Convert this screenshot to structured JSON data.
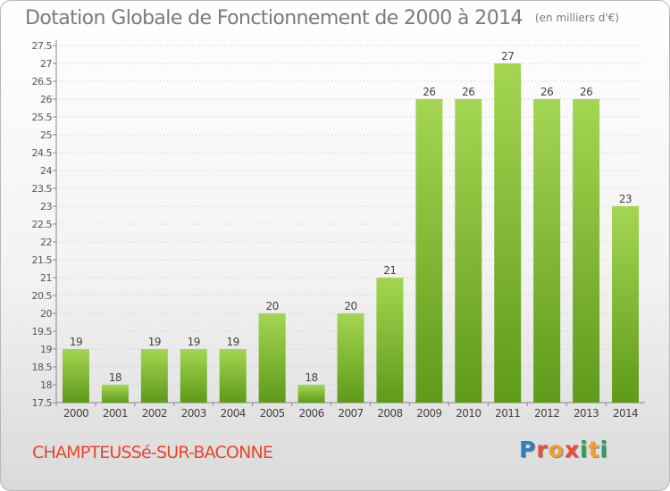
{
  "header": {
    "title": "Dotation Globale de Fonctionnement de 2000 à 2014",
    "unit": "(en milliers d'€)"
  },
  "footer": {
    "commune": "CHAMPTEUSSé-SUR-BACONNE",
    "logo_letters": [
      "P",
      "r",
      "o",
      "x",
      "i",
      "t",
      "i"
    ]
  },
  "colors": {
    "bar_light": "#a4d652",
    "bar_dark": "#5f9a1a",
    "grid": "#c8c8c8",
    "title": "#7a7a7a",
    "commune": "#e8452c",
    "logo": [
      "#2f7fc4",
      "#e94b3c",
      "#f0a030",
      "#e94b3c",
      "#2fa05a",
      "#f0a030",
      "#2fa05a"
    ]
  },
  "chart_data": {
    "type": "bar",
    "categories": [
      "2000",
      "2001",
      "2002",
      "2003",
      "2004",
      "2005",
      "2006",
      "2007",
      "2008",
      "2009",
      "2010",
      "2011",
      "2012",
      "2013",
      "2014"
    ],
    "values": [
      19,
      18,
      19,
      19,
      19,
      20,
      18,
      20,
      21,
      26,
      26,
      27,
      26,
      26,
      23
    ],
    "value_labels": [
      "19",
      "18",
      "19",
      "19",
      "19",
      "20",
      "18",
      "20",
      "21",
      "26",
      "26",
      "27",
      "26",
      "26",
      "23"
    ],
    "y_ticks": [
      "17.5",
      "18",
      "18.5",
      "19",
      "19.5",
      "20",
      "20.5",
      "21",
      "21.5",
      "22",
      "22.5",
      "23",
      "23.5",
      "24",
      "24.5",
      "25",
      "25.5",
      "26",
      "26.5",
      "27",
      "27.5"
    ],
    "ylim": [
      17.5,
      27.5
    ],
    "grid": true,
    "legend": "none"
  }
}
